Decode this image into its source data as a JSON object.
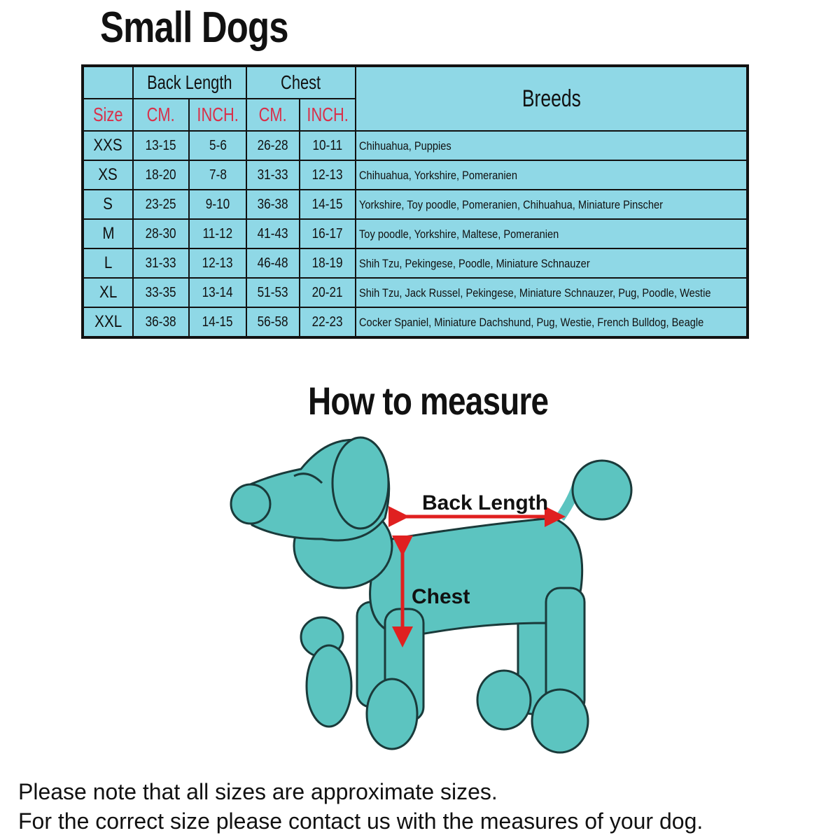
{
  "title": "Small Dogs",
  "table": {
    "group_headers": {
      "back_length": "Back Length",
      "chest": "Chest",
      "breeds": "Breeds"
    },
    "sub_headers": {
      "size": "Size",
      "back_cm": "CM.",
      "back_inch": "INCH.",
      "chest_cm": "CM.",
      "chest_inch": "INCH."
    },
    "rows": [
      {
        "size": "XXS",
        "back_cm": "13-15",
        "back_inch": "5-6",
        "chest_cm": "26-28",
        "chest_inch": "10-11",
        "breeds": "Chihuahua, Puppies"
      },
      {
        "size": "XS",
        "back_cm": "18-20",
        "back_inch": "7-8",
        "chest_cm": "31-33",
        "chest_inch": "12-13",
        "breeds": "Chihuahua, Yorkshire, Pomeranien"
      },
      {
        "size": "S",
        "back_cm": "23-25",
        "back_inch": "9-10",
        "chest_cm": "36-38",
        "chest_inch": "14-15",
        "breeds": "Yorkshire, Toy poodle, Pomeranien, Chihuahua, Miniature Pinscher"
      },
      {
        "size": "M",
        "back_cm": "28-30",
        "back_inch": "11-12",
        "chest_cm": "41-43",
        "chest_inch": "16-17",
        "breeds": "Toy poodle, Yorkshire, Maltese, Pomeranien"
      },
      {
        "size": "L",
        "back_cm": "31-33",
        "back_inch": "12-13",
        "chest_cm": "46-48",
        "chest_inch": "18-19",
        "breeds": "Shih Tzu, Pekingese, Poodle, Miniature Schnauzer"
      },
      {
        "size": "XL",
        "back_cm": "33-35",
        "back_inch": "13-14",
        "chest_cm": "51-53",
        "chest_inch": "20-21",
        "breeds": "Shih Tzu, Jack Russel, Pekingese, Miniature Schnauzer, Pug, Poodle, Westie"
      },
      {
        "size": "XXL",
        "back_cm": "36-38",
        "back_inch": "14-15",
        "chest_cm": "56-58",
        "chest_inch": "22-23",
        "breeds": "Cocker Spaniel, Miniature Dachshund, Pug, Westie, French Bulldog, Beagle"
      }
    ]
  },
  "measure": {
    "title": "How to measure",
    "back_length_label": "Back Length",
    "chest_label": "Chest"
  },
  "notes": [
    "Please note that all sizes are approximate sizes.",
    "For the correct size please contact us with the measures of your dog."
  ],
  "colors": {
    "table_bg": "#8fd8e6",
    "header_red": "#d9304a",
    "dog": "#5cc4c0",
    "arrow": "#e02020"
  }
}
